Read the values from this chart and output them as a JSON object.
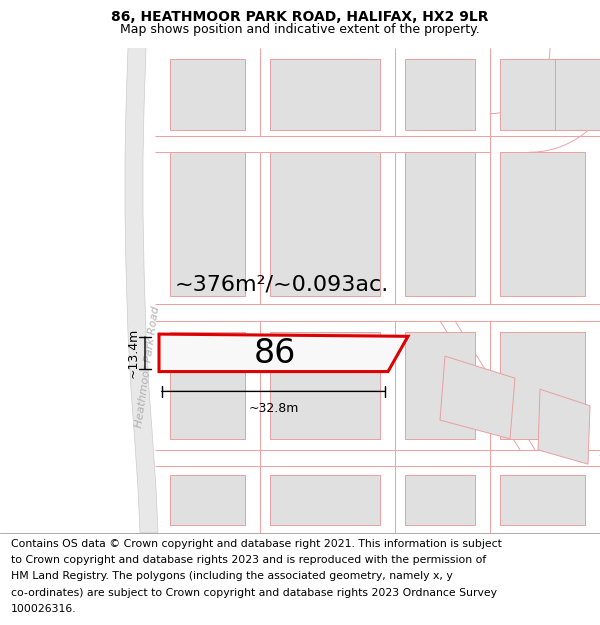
{
  "title": "86, HEATHMOOR PARK ROAD, HALIFAX, HX2 9LR",
  "subtitle": "Map shows position and indicative extent of the property.",
  "footer_lines": [
    "Contains OS data © Crown copyright and database right 2021. This information is subject",
    "to Crown copyright and database rights 2023 and is reproduced with the permission of",
    "HM Land Registry. The polygons (including the associated geometry, namely x, y",
    "co-ordinates) are subject to Crown copyright and database rights 2023 Ordnance Survey",
    "100026316."
  ],
  "area_text": "~376m²/~0.093ac.",
  "house_number": "86",
  "dim_width": "~32.8m",
  "dim_height": "~13.4m",
  "street_label": "Heathmoor Park Road",
  "bg_color": "#ffffff",
  "road_fill": "#e8e8e8",
  "road_edge": "#cccccc",
  "plot_fill": "#e0e0e0",
  "plot_edge": "#e8a0a0",
  "highlight_fill": "#f8f8f8",
  "highlight_edge": "#dd0000",
  "line_color": "#f0a0a0",
  "title_fontsize": 10,
  "subtitle_fontsize": 9,
  "footer_fontsize": 7.8,
  "area_fontsize": 16,
  "num_fontsize": 24,
  "dim_fontsize": 9,
  "street_fontsize": 8
}
